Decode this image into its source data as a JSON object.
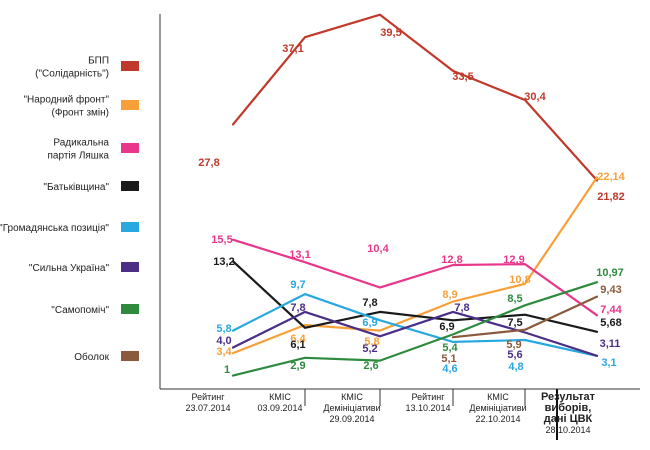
{
  "chart_data": {
    "type": "line",
    "title": "",
    "xlabel": "",
    "ylabel": "",
    "ylim": [
      0,
      40
    ],
    "grid": false,
    "legend_placement": "left",
    "categories": [
      [
        "Рейтинг",
        "23.07.2014"
      ],
      [
        "КМІС",
        "03.09.2014"
      ],
      [
        "КМІС",
        "Демініціативи",
        "29.09.2014"
      ],
      [
        "Рейтинг",
        "13.10.2014"
      ],
      [
        "КМІС",
        "Демініціативи",
        "22.10.2014"
      ],
      [
        "Результат",
        "виборів,",
        "дані ЦВК",
        "28.10.2014"
      ]
    ],
    "series": [
      {
        "name": [
          "БПП",
          "(\"Солідарність\")"
        ],
        "color": "#c0392b",
        "values": [
          27.8,
          37.1,
          39.5,
          33.5,
          30.4,
          21.82
        ],
        "labels": [
          "27,8",
          "37,1",
          "39,5",
          "33,5",
          "30,4",
          "21,82"
        ]
      },
      {
        "name": [
          "\"Народний фронт\"",
          "(Фронт змін)"
        ],
        "color": "#f7a03a",
        "values": [
          3.4,
          6.4,
          5.8,
          8.9,
          10.8,
          22.14
        ],
        "labels": [
          "3,4",
          "6,4",
          "5,8",
          "8,9",
          "10,8",
          "22,14"
        ]
      },
      {
        "name": [
          "Радикальна",
          "партія Ляшка"
        ],
        "color": "#e8378a",
        "values": [
          15.5,
          13.1,
          10.4,
          12.8,
          12.9,
          7.44
        ],
        "labels": [
          "15,5",
          "13,1",
          "10,4",
          "12,8",
          "12,9",
          "7,44"
        ]
      },
      {
        "name": [
          "\"Батьківщина\""
        ],
        "color": "#1a1a1a",
        "values": [
          13.2,
          6.1,
          7.8,
          6.9,
          7.5,
          5.68
        ],
        "labels": [
          "13,2",
          "6,1",
          "7,8",
          "6,9",
          "7,5",
          "5,68"
        ]
      },
      {
        "name": [
          "\"Громадянська позиція\""
        ],
        "color": "#29a8e0",
        "values": [
          5.8,
          9.7,
          6.9,
          4.6,
          4.8,
          3.1
        ],
        "labels": [
          "5,8",
          "9,7",
          "6,9",
          "4,6",
          "4,8",
          "3,1"
        ]
      },
      {
        "name": [
          "\"Сильна Україна\""
        ],
        "color": "#4b2f87",
        "values": [
          4.0,
          7.8,
          5.2,
          7.8,
          5.6,
          3.11
        ],
        "labels": [
          "4,0",
          "7,8",
          "5,2",
          "7,8",
          "5,6",
          "3,11"
        ]
      },
      {
        "name": [
          "\"Самопоміч\""
        ],
        "color": "#2e8b3e",
        "values": [
          1,
          2.9,
          2.6,
          5.4,
          8.5,
          10.97
        ],
        "labels": [
          "1",
          "2,9",
          "2,6",
          "5,4",
          "8,5",
          "10,97"
        ]
      },
      {
        "name": [
          "Оболок"
        ],
        "color": "#8b5a3c",
        "values": [
          null,
          null,
          null,
          5.1,
          5.9,
          9.43
        ],
        "labels": [
          "",
          "",
          "",
          "5,1",
          "5,9",
          "9,43"
        ]
      }
    ]
  }
}
